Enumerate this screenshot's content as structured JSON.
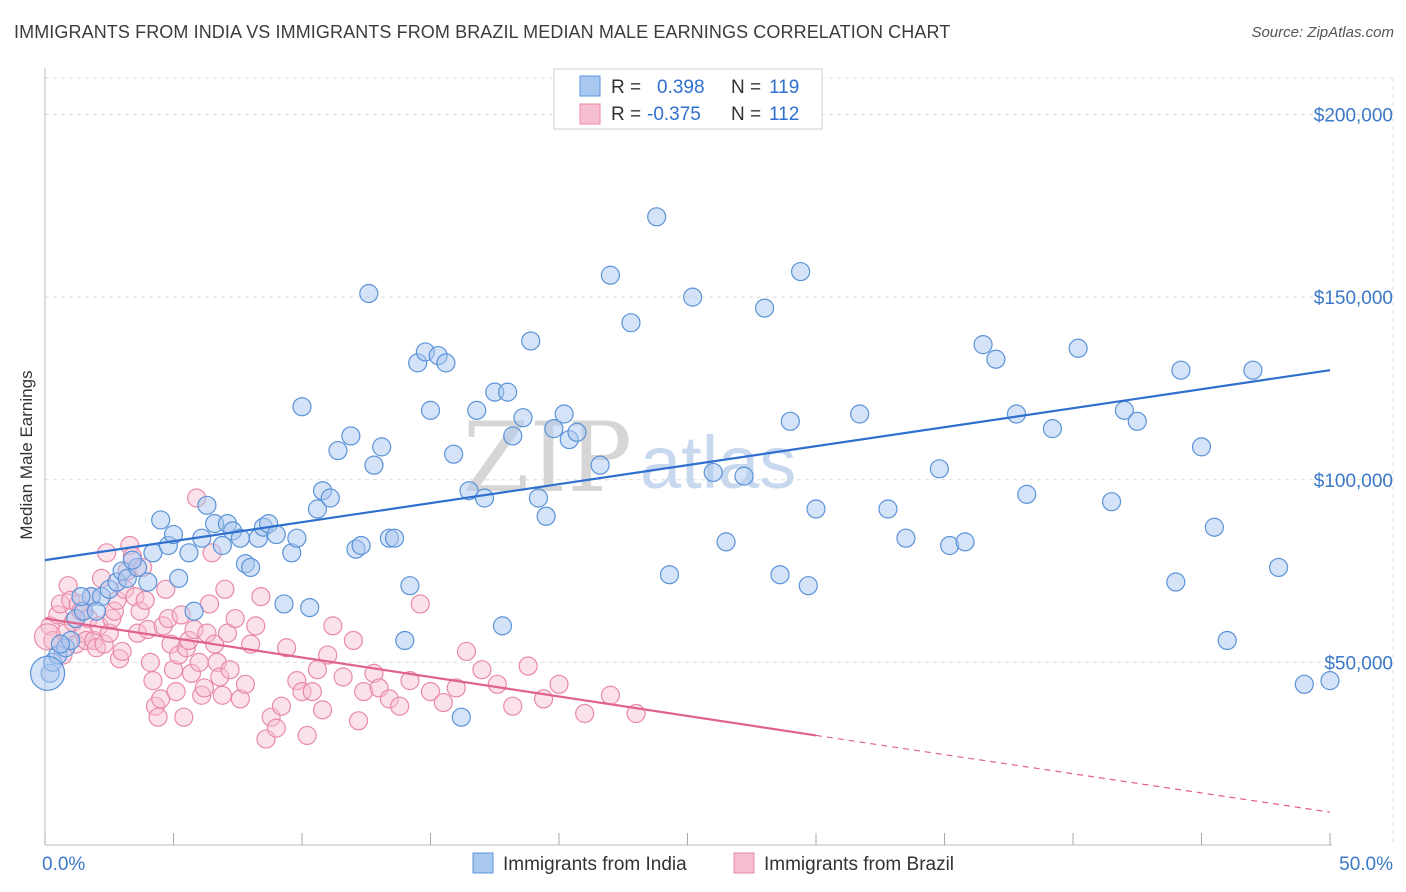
{
  "title": "IMMIGRANTS FROM INDIA VS IMMIGRANTS FROM BRAZIL MEDIAN MALE EARNINGS CORRELATION CHART",
  "source": "Source: ZipAtlas.com",
  "watermark": {
    "zip": "ZIP",
    "atlas": "atlas"
  },
  "legend": {
    "india": {
      "r_label": "R =",
      "r_value": "0.398",
      "n_label": "N =",
      "n_value": "119"
    },
    "brazil": {
      "r_label": "R =",
      "r_value": "-0.375",
      "n_label": "N =",
      "n_value": "112"
    }
  },
  "colors": {
    "india_fill": "#a9c8f0",
    "india_stroke": "#5b93d8",
    "india_line": "#2f6fce",
    "brazil_fill": "#f6bfd0",
    "brazil_stroke": "#e98aa8",
    "brazil_line": "#e0628e",
    "grid": "#dcdcdc",
    "axis_text": "#3a78c8"
  },
  "chart_data": {
    "type": "scatter",
    "title": "IMMIGRANTS FROM INDIA VS IMMIGRANTS FROM BRAZIL MEDIAN MALE EARNINGS CORRELATION CHART",
    "xlabel": "",
    "ylabel": "Median Male Earnings",
    "xlim": [
      0,
      50
    ],
    "ylim": [
      0,
      210000
    ],
    "x_tick_labels": [
      "0.0%",
      "50.0%"
    ],
    "y_ticks": [
      50000,
      100000,
      150000,
      200000
    ],
    "y_tick_labels": [
      "$50,000",
      "$100,000",
      "$150,000",
      "$200,000"
    ],
    "grid": true,
    "legend_position": "top-center",
    "series": [
      {
        "name": "Immigrants from India",
        "r": 0.398,
        "n": 119,
        "trend": {
          "x0": 0,
          "y0": 78000,
          "x1": 50,
          "y1": 130000
        },
        "points": [
          [
            0.2,
            47000
          ],
          [
            0.3,
            50000
          ],
          [
            0.5,
            52000
          ],
          [
            0.8,
            54000
          ],
          [
            1.0,
            56000
          ],
          [
            0.6,
            55000
          ],
          [
            1.2,
            62000
          ],
          [
            1.5,
            64000
          ],
          [
            1.8,
            68000
          ],
          [
            2.2,
            68000
          ],
          [
            2.5,
            70000
          ],
          [
            2.8,
            72000
          ],
          [
            3.0,
            75000
          ],
          [
            3.2,
            73000
          ],
          [
            3.6,
            76000
          ],
          [
            4.0,
            72000
          ],
          [
            4.2,
            80000
          ],
          [
            4.5,
            89000
          ],
          [
            4.8,
            82000
          ],
          [
            5.2,
            73000
          ],
          [
            5.6,
            80000
          ],
          [
            5.8,
            64000
          ],
          [
            6.1,
            84000
          ],
          [
            6.3,
            93000
          ],
          [
            6.6,
            88000
          ],
          [
            6.9,
            82000
          ],
          [
            7.1,
            88000
          ],
          [
            7.3,
            86000
          ],
          [
            7.6,
            84000
          ],
          [
            7.8,
            77000
          ],
          [
            8.0,
            76000
          ],
          [
            8.3,
            84000
          ],
          [
            8.5,
            87000
          ],
          [
            8.7,
            88000
          ],
          [
            9.0,
            85000
          ],
          [
            9.3,
            66000
          ],
          [
            9.6,
            80000
          ],
          [
            9.8,
            84000
          ],
          [
            10.0,
            120000
          ],
          [
            10.3,
            65000
          ],
          [
            10.6,
            92000
          ],
          [
            10.8,
            97000
          ],
          [
            11.1,
            95000
          ],
          [
            11.4,
            108000
          ],
          [
            11.9,
            112000
          ],
          [
            12.1,
            81000
          ],
          [
            12.3,
            82000
          ],
          [
            12.6,
            151000
          ],
          [
            12.8,
            104000
          ],
          [
            13.1,
            109000
          ],
          [
            13.4,
            84000
          ],
          [
            13.6,
            84000
          ],
          [
            14.0,
            56000
          ],
          [
            14.2,
            71000
          ],
          [
            14.5,
            132000
          ],
          [
            14.8,
            135000
          ],
          [
            15.0,
            119000
          ],
          [
            15.3,
            134000
          ],
          [
            15.6,
            132000
          ],
          [
            15.9,
            107000
          ],
          [
            16.2,
            35000
          ],
          [
            16.5,
            97000
          ],
          [
            16.8,
            119000
          ],
          [
            17.1,
            95000
          ],
          [
            17.5,
            124000
          ],
          [
            17.8,
            60000
          ],
          [
            18.0,
            124000
          ],
          [
            18.2,
            112000
          ],
          [
            18.6,
            117000
          ],
          [
            18.9,
            138000
          ],
          [
            19.2,
            95000
          ],
          [
            19.5,
            90000
          ],
          [
            19.8,
            114000
          ],
          [
            20.2,
            118000
          ],
          [
            20.4,
            111000
          ],
          [
            20.7,
            113000
          ],
          [
            21.6,
            104000
          ],
          [
            22.0,
            156000
          ],
          [
            22.8,
            143000
          ],
          [
            23.8,
            172000
          ],
          [
            24.3,
            74000
          ],
          [
            25.2,
            150000
          ],
          [
            26.0,
            102000
          ],
          [
            26.5,
            83000
          ],
          [
            27.2,
            101000
          ],
          [
            28.0,
            147000
          ],
          [
            28.6,
            74000
          ],
          [
            29.0,
            116000
          ],
          [
            29.4,
            157000
          ],
          [
            29.7,
            71000
          ],
          [
            30.0,
            92000
          ],
          [
            31.7,
            118000
          ],
          [
            32.8,
            92000
          ],
          [
            33.5,
            84000
          ],
          [
            34.8,
            103000
          ],
          [
            35.2,
            82000
          ],
          [
            35.8,
            83000
          ],
          [
            36.5,
            137000
          ],
          [
            37.0,
            133000
          ],
          [
            37.8,
            118000
          ],
          [
            38.2,
            96000
          ],
          [
            39.2,
            114000
          ],
          [
            40.2,
            136000
          ],
          [
            41.5,
            94000
          ],
          [
            42.0,
            119000
          ],
          [
            42.5,
            116000
          ],
          [
            44.0,
            72000
          ],
          [
            44.2,
            130000
          ],
          [
            45.0,
            109000
          ],
          [
            45.5,
            87000
          ],
          [
            46.0,
            56000
          ],
          [
            47.0,
            130000
          ],
          [
            48.0,
            76000
          ],
          [
            49.0,
            44000
          ],
          [
            50.0,
            45000
          ],
          [
            1.4,
            68000
          ],
          [
            2.0,
            64000
          ],
          [
            3.4,
            78000
          ],
          [
            5.0,
            85000
          ]
        ]
      },
      {
        "name": "Immigrants from Brazil",
        "r": -0.375,
        "n": 112,
        "trend": {
          "x0": 0,
          "y0": 62000,
          "x1": 30,
          "y1": 30000,
          "dashed_x0": 30,
          "dashed_y0": 30000,
          "dashed_x1": 50,
          "dashed_y1": 9000
        },
        "points": [
          [
            0.2,
            60000
          ],
          [
            0.3,
            56000
          ],
          [
            0.5,
            63000
          ],
          [
            0.6,
            66000
          ],
          [
            0.7,
            52000
          ],
          [
            0.8,
            58000
          ],
          [
            0.9,
            71000
          ],
          [
            1.0,
            67000
          ],
          [
            1.1,
            61000
          ],
          [
            1.2,
            55000
          ],
          [
            1.3,
            66000
          ],
          [
            1.4,
            64000
          ],
          [
            1.5,
            58000
          ],
          [
            1.6,
            56000
          ],
          [
            1.7,
            62000
          ],
          [
            1.8,
            68000
          ],
          [
            1.9,
            56000
          ],
          [
            2.0,
            54000
          ],
          [
            2.1,
            60000
          ],
          [
            2.2,
            73000
          ],
          [
            2.3,
            55000
          ],
          [
            2.4,
            80000
          ],
          [
            2.5,
            58000
          ],
          [
            2.6,
            62000
          ],
          [
            2.7,
            64000
          ],
          [
            2.8,
            67000
          ],
          [
            2.9,
            51000
          ],
          [
            3.0,
            53000
          ],
          [
            3.1,
            70000
          ],
          [
            3.2,
            75000
          ],
          [
            3.3,
            82000
          ],
          [
            3.4,
            79000
          ],
          [
            3.5,
            68000
          ],
          [
            3.6,
            58000
          ],
          [
            3.7,
            64000
          ],
          [
            3.8,
            76000
          ],
          [
            3.9,
            67000
          ],
          [
            4.0,
            59000
          ],
          [
            4.1,
            50000
          ],
          [
            4.2,
            45000
          ],
          [
            4.3,
            38000
          ],
          [
            4.4,
            35000
          ],
          [
            4.5,
            40000
          ],
          [
            4.6,
            60000
          ],
          [
            4.7,
            70000
          ],
          [
            4.8,
            62000
          ],
          [
            4.9,
            55000
          ],
          [
            5.0,
            48000
          ],
          [
            5.1,
            42000
          ],
          [
            5.2,
            52000
          ],
          [
            5.3,
            63000
          ],
          [
            5.4,
            35000
          ],
          [
            5.5,
            54000
          ],
          [
            5.6,
            56000
          ],
          [
            5.7,
            47000
          ],
          [
            5.8,
            59000
          ],
          [
            5.9,
            95000
          ],
          [
            6.0,
            50000
          ],
          [
            6.1,
            41000
          ],
          [
            6.2,
            43000
          ],
          [
            6.3,
            58000
          ],
          [
            6.4,
            66000
          ],
          [
            6.5,
            80000
          ],
          [
            6.6,
            55000
          ],
          [
            6.7,
            50000
          ],
          [
            6.8,
            46000
          ],
          [
            6.9,
            41000
          ],
          [
            7.0,
            70000
          ],
          [
            7.1,
            58000
          ],
          [
            7.2,
            48000
          ],
          [
            7.4,
            62000
          ],
          [
            7.6,
            40000
          ],
          [
            7.8,
            44000
          ],
          [
            8.0,
            55000
          ],
          [
            8.2,
            60000
          ],
          [
            8.4,
            68000
          ],
          [
            8.6,
            29000
          ],
          [
            8.8,
            35000
          ],
          [
            9.0,
            32000
          ],
          [
            9.2,
            38000
          ],
          [
            9.4,
            54000
          ],
          [
            9.8,
            45000
          ],
          [
            10.0,
            42000
          ],
          [
            10.2,
            30000
          ],
          [
            10.4,
            42000
          ],
          [
            10.6,
            48000
          ],
          [
            10.8,
            37000
          ],
          [
            11.0,
            52000
          ],
          [
            11.2,
            60000
          ],
          [
            11.6,
            46000
          ],
          [
            12.0,
            56000
          ],
          [
            12.2,
            34000
          ],
          [
            12.4,
            42000
          ],
          [
            12.8,
            47000
          ],
          [
            13.0,
            43000
          ],
          [
            13.4,
            40000
          ],
          [
            13.8,
            38000
          ],
          [
            14.2,
            45000
          ],
          [
            14.6,
            66000
          ],
          [
            15.0,
            42000
          ],
          [
            15.5,
            39000
          ],
          [
            16.0,
            43000
          ],
          [
            16.4,
            53000
          ],
          [
            17.0,
            48000
          ],
          [
            17.6,
            44000
          ],
          [
            18.2,
            38000
          ],
          [
            18.8,
            49000
          ],
          [
            19.4,
            40000
          ],
          [
            20.0,
            44000
          ],
          [
            21.0,
            36000
          ],
          [
            22.0,
            41000
          ],
          [
            23.0,
            36000
          ]
        ]
      }
    ]
  }
}
